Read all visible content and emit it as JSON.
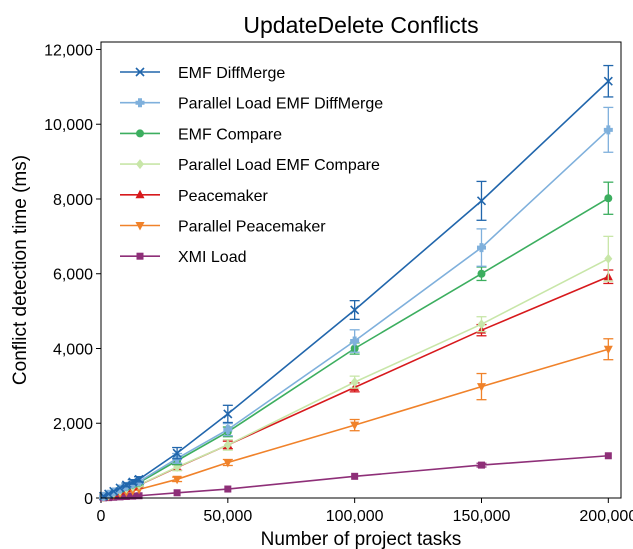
{
  "chart_data": {
    "type": "line",
    "title": "UpdateDelete Conflicts",
    "xlabel": "Number of project tasks",
    "ylabel": "Conflict detection time (ms)",
    "xlim": [
      0,
      205000
    ],
    "ylim": [
      0,
      12200
    ],
    "x_ticks": [
      {
        "value": 0,
        "label": "0"
      },
      {
        "value": 50000,
        "label": "50,000"
      },
      {
        "value": 100000,
        "label": "100,000"
      },
      {
        "value": 150000,
        "label": "150,000"
      },
      {
        "value": 200000,
        "label": "200,000"
      }
    ],
    "y_ticks": [
      {
        "value": 0,
        "label": "0"
      },
      {
        "value": 2000,
        "label": "2,000"
      },
      {
        "value": 4000,
        "label": "4,000"
      },
      {
        "value": 6000,
        "label": "6,000"
      },
      {
        "value": 8000,
        "label": "8,000"
      },
      {
        "value": 10000,
        "label": "10,000"
      },
      {
        "value": 12000,
        "label": "12,000"
      }
    ],
    "grid": false,
    "legend_position": "top-left",
    "x": [
      1000,
      3000,
      5000,
      7500,
      10000,
      12500,
      15000,
      30000,
      50000,
      100000,
      150000,
      200000
    ],
    "series": [
      {
        "name": "EMF DiffMerge",
        "color": "#2166ac",
        "marker": "x",
        "values": [
          50,
          110,
          180,
          270,
          350,
          430,
          500,
          1200,
          2250,
          5030,
          7950,
          11150
        ],
        "errors": [
          10,
          20,
          30,
          40,
          50,
          60,
          70,
          150,
          230,
          250,
          520,
          420
        ]
      },
      {
        "name": "Parallel Load EMF DiffMerge",
        "color": "#7fb0dc",
        "marker": "plus-filled",
        "values": [
          45,
          100,
          160,
          240,
          310,
          380,
          440,
          1060,
          1830,
          4200,
          6700,
          9850
        ],
        "errors": [
          10,
          20,
          25,
          35,
          45,
          55,
          60,
          130,
          160,
          300,
          500,
          600
        ]
      },
      {
        "name": "EMF Compare",
        "color": "#3cae5f",
        "marker": "circle",
        "values": [
          40,
          95,
          150,
          225,
          290,
          355,
          410,
          1000,
          1770,
          4000,
          6000,
          8020
        ],
        "errors": [
          10,
          15,
          25,
          30,
          40,
          50,
          55,
          110,
          130,
          150,
          180,
          430
        ]
      },
      {
        "name": "Parallel Load EMF Compare",
        "color": "#c8e6a8",
        "marker": "diamond",
        "values": [
          35,
          80,
          130,
          190,
          250,
          300,
          350,
          830,
          1420,
          3100,
          4650,
          6400
        ],
        "errors": [
          8,
          15,
          20,
          25,
          35,
          40,
          50,
          100,
          140,
          160,
          200,
          600
        ]
      },
      {
        "name": "Peacemaker",
        "color": "#d7191c",
        "marker": "triangle-up",
        "values": [
          35,
          80,
          125,
          185,
          245,
          300,
          345,
          820,
          1420,
          2960,
          4490,
          5920
        ],
        "errors": [
          8,
          15,
          20,
          25,
          30,
          40,
          45,
          80,
          100,
          120,
          150,
          180
        ]
      },
      {
        "name": "Parallel Peacemaker",
        "color": "#f0822a",
        "marker": "triangle-down",
        "values": [
          25,
          55,
          80,
          120,
          160,
          195,
          230,
          500,
          950,
          1950,
          2980,
          3980
        ],
        "errors": [
          5,
          10,
          15,
          20,
          25,
          30,
          35,
          60,
          80,
          150,
          350,
          280
        ]
      },
      {
        "name": "XMI Load",
        "color": "#8e2f78",
        "marker": "square",
        "values": [
          5,
          10,
          20,
          30,
          40,
          50,
          60,
          140,
          240,
          580,
          880,
          1130
        ],
        "errors": [
          2,
          3,
          4,
          5,
          6,
          8,
          10,
          15,
          20,
          30,
          50,
          40
        ]
      }
    ]
  }
}
